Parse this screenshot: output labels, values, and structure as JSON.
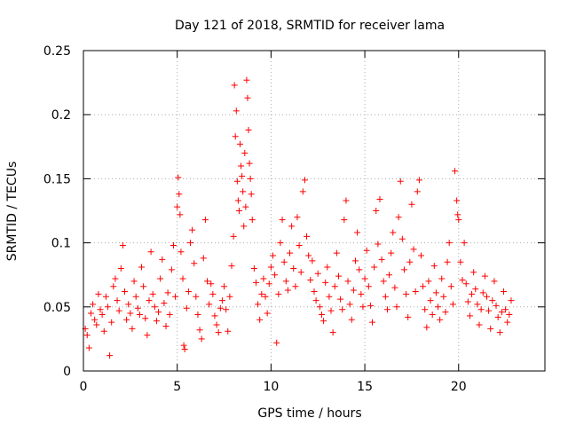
{
  "chart_data": {
    "type": "scatter",
    "title": "Day 121 of 2018, SRMTID for receiver lama",
    "xlabel": "GPS time / hours",
    "ylabel": "SRMTID / TECUs",
    "xlim": [
      0,
      24.6
    ],
    "ylim": [
      0,
      0.25
    ],
    "x_ticks": [
      0,
      5,
      10,
      15,
      20
    ],
    "x_tick_labels": [
      "0",
      "5",
      "10",
      "15",
      "20"
    ],
    "y_ticks": [
      0,
      0.05,
      0.1,
      0.15,
      0.2,
      0.25
    ],
    "y_tick_labels": [
      "0",
      "0.05",
      "0.1",
      "0.15",
      "0.2",
      "0.25"
    ],
    "grid": true,
    "marker": "plus",
    "marker_color": "#ff0000",
    "series": [
      {
        "name": "SRMTID",
        "points": [
          [
            0.1,
            0.033
          ],
          [
            0.2,
            0.028
          ],
          [
            0.3,
            0.018
          ],
          [
            0.4,
            0.045
          ],
          [
            0.5,
            0.052
          ],
          [
            0.6,
            0.04
          ],
          [
            0.7,
            0.036
          ],
          [
            0.8,
            0.06
          ],
          [
            0.9,
            0.048
          ],
          [
            1.0,
            0.044
          ],
          [
            1.1,
            0.031
          ],
          [
            1.2,
            0.058
          ],
          [
            1.3,
            0.05
          ],
          [
            1.4,
            0.012
          ],
          [
            1.5,
            0.038
          ],
          [
            1.6,
            0.066
          ],
          [
            1.7,
            0.072
          ],
          [
            1.8,
            0.055
          ],
          [
            1.9,
            0.047
          ],
          [
            2.0,
            0.08
          ],
          [
            2.1,
            0.098
          ],
          [
            2.2,
            0.062
          ],
          [
            2.3,
            0.04
          ],
          [
            2.4,
            0.052
          ],
          [
            2.5,
            0.045
          ],
          [
            2.6,
            0.033
          ],
          [
            2.7,
            0.07
          ],
          [
            2.8,
            0.058
          ],
          [
            2.9,
            0.049
          ],
          [
            3.0,
            0.044
          ],
          [
            3.1,
            0.081
          ],
          [
            3.2,
            0.066
          ],
          [
            3.3,
            0.041
          ],
          [
            3.4,
            0.028
          ],
          [
            3.5,
            0.055
          ],
          [
            3.6,
            0.093
          ],
          [
            3.7,
            0.06
          ],
          [
            3.8,
            0.05
          ],
          [
            3.9,
            0.039
          ],
          [
            4.0,
            0.046
          ],
          [
            4.1,
            0.072
          ],
          [
            4.2,
            0.087
          ],
          [
            4.3,
            0.053
          ],
          [
            4.4,
            0.035
          ],
          [
            4.5,
            0.061
          ],
          [
            4.6,
            0.044
          ],
          [
            4.7,
            0.079
          ],
          [
            4.8,
            0.098
          ],
          [
            4.9,
            0.058
          ],
          [
            5.0,
            0.128
          ],
          [
            5.05,
            0.151
          ],
          [
            5.1,
            0.138
          ],
          [
            5.15,
            0.122
          ],
          [
            5.2,
            0.093
          ],
          [
            5.3,
            0.072
          ],
          [
            5.35,
            0.02
          ],
          [
            5.4,
            0.017
          ],
          [
            5.5,
            0.049
          ],
          [
            5.6,
            0.062
          ],
          [
            5.7,
            0.1
          ],
          [
            5.8,
            0.11
          ],
          [
            5.9,
            0.084
          ],
          [
            6.0,
            0.058
          ],
          [
            6.1,
            0.044
          ],
          [
            6.2,
            0.032
          ],
          [
            6.3,
            0.025
          ],
          [
            6.4,
            0.088
          ],
          [
            6.5,
            0.118
          ],
          [
            6.6,
            0.07
          ],
          [
            6.7,
            0.052
          ],
          [
            6.8,
            0.068
          ],
          [
            6.9,
            0.06
          ],
          [
            7.0,
            0.043
          ],
          [
            7.1,
            0.036
          ],
          [
            7.2,
            0.03
          ],
          [
            7.3,
            0.049
          ],
          [
            7.4,
            0.055
          ],
          [
            7.5,
            0.066
          ],
          [
            7.6,
            0.048
          ],
          [
            7.7,
            0.031
          ],
          [
            7.8,
            0.058
          ],
          [
            7.9,
            0.082
          ],
          [
            8.0,
            0.105
          ],
          [
            8.05,
            0.223
          ],
          [
            8.1,
            0.183
          ],
          [
            8.15,
            0.203
          ],
          [
            8.2,
            0.148
          ],
          [
            8.25,
            0.133
          ],
          [
            8.3,
            0.125
          ],
          [
            8.35,
            0.177
          ],
          [
            8.4,
            0.16
          ],
          [
            8.45,
            0.152
          ],
          [
            8.5,
            0.14
          ],
          [
            8.55,
            0.113
          ],
          [
            8.6,
            0.17
          ],
          [
            8.65,
            0.128
          ],
          [
            8.7,
            0.227
          ],
          [
            8.75,
            0.213
          ],
          [
            8.8,
            0.188
          ],
          [
            8.85,
            0.162
          ],
          [
            8.9,
            0.15
          ],
          [
            8.95,
            0.138
          ],
          [
            9.0,
            0.118
          ],
          [
            9.1,
            0.08
          ],
          [
            9.2,
            0.069
          ],
          [
            9.3,
            0.052
          ],
          [
            9.4,
            0.04
          ],
          [
            9.5,
            0.06
          ],
          [
            9.6,
            0.072
          ],
          [
            9.7,
            0.058
          ],
          [
            9.8,
            0.045
          ],
          [
            9.9,
            0.068
          ],
          [
            10.0,
            0.081
          ],
          [
            10.1,
            0.09
          ],
          [
            10.2,
            0.075
          ],
          [
            10.3,
            0.022
          ],
          [
            10.4,
            0.06
          ],
          [
            10.5,
            0.1
          ],
          [
            10.6,
            0.118
          ],
          [
            10.7,
            0.085
          ],
          [
            10.8,
            0.07
          ],
          [
            10.9,
            0.063
          ],
          [
            11.0,
            0.092
          ],
          [
            11.1,
            0.113
          ],
          [
            11.2,
            0.08
          ],
          [
            11.3,
            0.066
          ],
          [
            11.4,
            0.12
          ],
          [
            11.5,
            0.098
          ],
          [
            11.6,
            0.077
          ],
          [
            11.7,
            0.14
          ],
          [
            11.8,
            0.149
          ],
          [
            11.9,
            0.105
          ],
          [
            12.0,
            0.09
          ],
          [
            12.1,
            0.071
          ],
          [
            12.2,
            0.086
          ],
          [
            12.3,
            0.062
          ],
          [
            12.4,
            0.055
          ],
          [
            12.5,
            0.076
          ],
          [
            12.6,
            0.05
          ],
          [
            12.7,
            0.044
          ],
          [
            12.8,
            0.039
          ],
          [
            12.9,
            0.069
          ],
          [
            13.0,
            0.081
          ],
          [
            13.1,
            0.058
          ],
          [
            13.2,
            0.047
          ],
          [
            13.3,
            0.03
          ],
          [
            13.4,
            0.066
          ],
          [
            13.5,
            0.092
          ],
          [
            13.6,
            0.074
          ],
          [
            13.7,
            0.056
          ],
          [
            13.8,
            0.048
          ],
          [
            13.9,
            0.118
          ],
          [
            14.0,
            0.133
          ],
          [
            14.1,
            0.07
          ],
          [
            14.2,
            0.052
          ],
          [
            14.3,
            0.04
          ],
          [
            14.4,
            0.063
          ],
          [
            14.5,
            0.086
          ],
          [
            14.6,
            0.108
          ],
          [
            14.7,
            0.079
          ],
          [
            14.8,
            0.06
          ],
          [
            14.9,
            0.05
          ],
          [
            15.0,
            0.072
          ],
          [
            15.1,
            0.094
          ],
          [
            15.2,
            0.066
          ],
          [
            15.3,
            0.051
          ],
          [
            15.4,
            0.038
          ],
          [
            15.5,
            0.081
          ],
          [
            15.6,
            0.125
          ],
          [
            15.7,
            0.099
          ],
          [
            15.8,
            0.134
          ],
          [
            15.9,
            0.087
          ],
          [
            16.0,
            0.07
          ],
          [
            16.1,
            0.058
          ],
          [
            16.2,
            0.048
          ],
          [
            16.3,
            0.075
          ],
          [
            16.4,
            0.092
          ],
          [
            16.5,
            0.108
          ],
          [
            16.6,
            0.065
          ],
          [
            16.7,
            0.05
          ],
          [
            16.8,
            0.12
          ],
          [
            16.9,
            0.148
          ],
          [
            17.0,
            0.103
          ],
          [
            17.1,
            0.079
          ],
          [
            17.2,
            0.06
          ],
          [
            17.3,
            0.042
          ],
          [
            17.4,
            0.085
          ],
          [
            17.5,
            0.13
          ],
          [
            17.6,
            0.095
          ],
          [
            17.7,
            0.062
          ],
          [
            17.8,
            0.14
          ],
          [
            17.9,
            0.149
          ],
          [
            18.0,
            0.09
          ],
          [
            18.1,
            0.066
          ],
          [
            18.2,
            0.048
          ],
          [
            18.3,
            0.034
          ],
          [
            18.4,
            0.07
          ],
          [
            18.5,
            0.055
          ],
          [
            18.6,
            0.044
          ],
          [
            18.7,
            0.082
          ],
          [
            18.8,
            0.061
          ],
          [
            18.9,
            0.05
          ],
          [
            19.0,
            0.04
          ],
          [
            19.1,
            0.072
          ],
          [
            19.2,
            0.058
          ],
          [
            19.3,
            0.046
          ],
          [
            19.4,
            0.085
          ],
          [
            19.5,
            0.1
          ],
          [
            19.6,
            0.066
          ],
          [
            19.7,
            0.052
          ],
          [
            19.8,
            0.156
          ],
          [
            19.9,
            0.133
          ],
          [
            19.95,
            0.122
          ],
          [
            20.0,
            0.118
          ],
          [
            20.1,
            0.085
          ],
          [
            20.2,
            0.071
          ],
          [
            20.3,
            0.1
          ],
          [
            20.4,
            0.068
          ],
          [
            20.5,
            0.054
          ],
          [
            20.6,
            0.043
          ],
          [
            20.7,
            0.06
          ],
          [
            20.8,
            0.077
          ],
          [
            20.9,
            0.064
          ],
          [
            21.0,
            0.052
          ],
          [
            21.1,
            0.036
          ],
          [
            21.2,
            0.048
          ],
          [
            21.3,
            0.061
          ],
          [
            21.4,
            0.074
          ],
          [
            21.5,
            0.058
          ],
          [
            21.6,
            0.047
          ],
          [
            21.7,
            0.033
          ],
          [
            21.8,
            0.055
          ],
          [
            21.9,
            0.07
          ],
          [
            22.0,
            0.051
          ],
          [
            22.1,
            0.042
          ],
          [
            22.2,
            0.03
          ],
          [
            22.3,
            0.046
          ],
          [
            22.4,
            0.062
          ],
          [
            22.5,
            0.048
          ],
          [
            22.6,
            0.038
          ],
          [
            22.7,
            0.044
          ],
          [
            22.8,
            0.055
          ]
        ]
      }
    ]
  }
}
